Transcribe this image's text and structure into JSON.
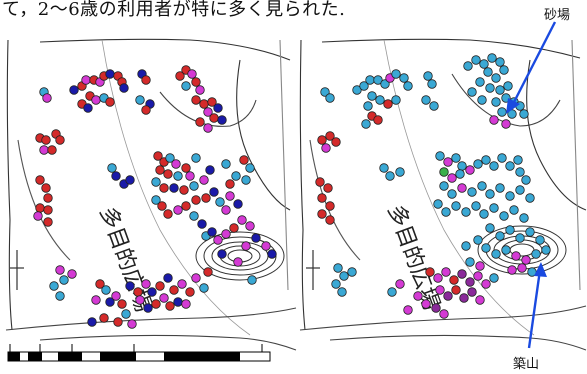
{
  "caption": "て，2〜6歳の利用者が特に多く見られた.",
  "labels": {
    "sand_pit": "砂場",
    "mound": "築山",
    "plaza": "多目的広場"
  },
  "colors": {
    "red": "#d42a2a",
    "magenta": "#d43ad4",
    "navy": "#1a1aa8",
    "cyan": "#3aa8d4",
    "purple": "#8a2a9a",
    "green": "#3ab04a",
    "arrow": "#1a4ae0"
  },
  "maps": [
    {
      "dots": [
        [
          44,
          92,
          "cyan"
        ],
        [
          47,
          98,
          "magenta"
        ],
        [
          74,
          90,
          "navy"
        ],
        [
          82,
          86,
          "red"
        ],
        [
          86,
          80,
          "magenta"
        ],
        [
          94,
          80,
          "red"
        ],
        [
          100,
          82,
          "magenta"
        ],
        [
          104,
          76,
          "red"
        ],
        [
          110,
          74,
          "navy"
        ],
        [
          118,
          76,
          "red"
        ],
        [
          122,
          82,
          "red"
        ],
        [
          124,
          88,
          "navy"
        ],
        [
          90,
          96,
          "red"
        ],
        [
          96,
          100,
          "magenta"
        ],
        [
          104,
          98,
          "cyan"
        ],
        [
          110,
          102,
          "red"
        ],
        [
          82,
          104,
          "red"
        ],
        [
          88,
          108,
          "navy"
        ],
        [
          142,
          74,
          "navy"
        ],
        [
          146,
          80,
          "red"
        ],
        [
          140,
          100,
          "cyan"
        ],
        [
          150,
          104,
          "navy"
        ],
        [
          146,
          110,
          "red"
        ],
        [
          180,
          76,
          "red"
        ],
        [
          186,
          70,
          "red"
        ],
        [
          192,
          74,
          "magenta"
        ],
        [
          196,
          82,
          "red"
        ],
        [
          186,
          86,
          "cyan"
        ],
        [
          200,
          90,
          "magenta"
        ],
        [
          196,
          100,
          "red"
        ],
        [
          204,
          104,
          "red"
        ],
        [
          212,
          102,
          "red"
        ],
        [
          218,
          108,
          "navy"
        ],
        [
          208,
          112,
          "magenta"
        ],
        [
          214,
          118,
          "red"
        ],
        [
          222,
          120,
          "navy"
        ],
        [
          200,
          122,
          "red"
        ],
        [
          208,
          128,
          "magenta"
        ],
        [
          40,
          138,
          "red"
        ],
        [
          46,
          140,
          "red"
        ],
        [
          56,
          134,
          "red"
        ],
        [
          60,
          140,
          "red"
        ],
        [
          44,
          150,
          "magenta"
        ],
        [
          52,
          150,
          "red"
        ],
        [
          40,
          180,
          "red"
        ],
        [
          46,
          188,
          "red"
        ],
        [
          48,
          198,
          "red"
        ],
        [
          40,
          208,
          "red"
        ],
        [
          48,
          210,
          "red"
        ],
        [
          38,
          216,
          "magenta"
        ],
        [
          48,
          222,
          "red"
        ],
        [
          112,
          168,
          "cyan"
        ],
        [
          116,
          176,
          "navy"
        ],
        [
          124,
          184,
          "navy"
        ],
        [
          130,
          180,
          "navy"
        ],
        [
          158,
          156,
          "red"
        ],
        [
          164,
          162,
          "red"
        ],
        [
          170,
          158,
          "cyan"
        ],
        [
          176,
          164,
          "magenta"
        ],
        [
          160,
          170,
          "red"
        ],
        [
          168,
          174,
          "red"
        ],
        [
          178,
          176,
          "cyan"
        ],
        [
          186,
          168,
          "red"
        ],
        [
          190,
          176,
          "magenta"
        ],
        [
          156,
          182,
          "cyan"
        ],
        [
          164,
          188,
          "red"
        ],
        [
          174,
          188,
          "navy"
        ],
        [
          184,
          190,
          "red"
        ],
        [
          194,
          186,
          "cyan"
        ],
        [
          204,
          180,
          "magenta"
        ],
        [
          210,
          170,
          "navy"
        ],
        [
          196,
          158,
          "cyan"
        ],
        [
          156,
          200,
          "cyan"
        ],
        [
          162,
          206,
          "red"
        ],
        [
          168,
          214,
          "red"
        ],
        [
          178,
          210,
          "magenta"
        ],
        [
          186,
          206,
          "red"
        ],
        [
          196,
          200,
          "red"
        ],
        [
          206,
          198,
          "red"
        ],
        [
          214,
          192,
          "navy"
        ],
        [
          220,
          202,
          "cyan"
        ],
        [
          226,
          210,
          "magenta"
        ],
        [
          230,
          196,
          "magenta"
        ],
        [
          238,
          204,
          "navy"
        ],
        [
          230,
          184,
          "red"
        ],
        [
          236,
          176,
          "cyan"
        ],
        [
          246,
          180,
          "cyan"
        ],
        [
          226,
          164,
          "cyan"
        ],
        [
          244,
          160,
          "red"
        ],
        [
          250,
          168,
          "cyan"
        ],
        [
          194,
          216,
          "cyan"
        ],
        [
          202,
          224,
          "navy"
        ],
        [
          206,
          236,
          "cyan"
        ],
        [
          212,
          232,
          "navy"
        ],
        [
          218,
          240,
          "magenta"
        ],
        [
          226,
          234,
          "magenta"
        ],
        [
          234,
          228,
          "red"
        ],
        [
          242,
          220,
          "magenta"
        ],
        [
          250,
          226,
          "magenta"
        ],
        [
          256,
          238,
          "navy"
        ],
        [
          246,
          246,
          "magenta"
        ],
        [
          266,
          246,
          "magenta"
        ],
        [
          272,
          254,
          "navy"
        ],
        [
          238,
          262,
          "magenta"
        ],
        [
          222,
          254,
          "navy"
        ],
        [
          60,
          270,
          "magenta"
        ],
        [
          64,
          280,
          "cyan"
        ],
        [
          72,
          274,
          "magenta"
        ],
        [
          54,
          286,
          "cyan"
        ],
        [
          60,
          296,
          "cyan"
        ],
        [
          100,
          284,
          "red"
        ],
        [
          106,
          290,
          "cyan"
        ],
        [
          96,
          300,
          "magenta"
        ],
        [
          110,
          302,
          "navy"
        ],
        [
          116,
          296,
          "magenta"
        ],
        [
          122,
          304,
          "red"
        ],
        [
          130,
          286,
          "navy"
        ],
        [
          138,
          292,
          "red"
        ],
        [
          146,
          284,
          "magenta"
        ],
        [
          152,
          292,
          "navy"
        ],
        [
          160,
          286,
          "red"
        ],
        [
          168,
          278,
          "navy"
        ],
        [
          174,
          290,
          "red"
        ],
        [
          182,
          284,
          "magenta"
        ],
        [
          190,
          292,
          "red"
        ],
        [
          196,
          278,
          "magenta"
        ],
        [
          204,
          288,
          "cyan"
        ],
        [
          208,
          272,
          "red"
        ],
        [
          140,
          300,
          "magenta"
        ],
        [
          148,
          308,
          "navy"
        ],
        [
          156,
          304,
          "red"
        ],
        [
          164,
          298,
          "magenta"
        ],
        [
          170,
          306,
          "red"
        ],
        [
          178,
          302,
          "navy"
        ],
        [
          186,
          304,
          "magenta"
        ],
        [
          126,
          314,
          "cyan"
        ],
        [
          118,
          322,
          "red"
        ],
        [
          132,
          324,
          "magenta"
        ],
        [
          92,
          322,
          "navy"
        ],
        [
          104,
          318,
          "red"
        ],
        [
          252,
          280,
          "cyan"
        ]
      ]
    },
    {
      "dots": [
        [
          325,
          92,
          "cyan"
        ],
        [
          330,
          98,
          "cyan"
        ],
        [
          357,
          90,
          "cyan"
        ],
        [
          364,
          86,
          "cyan"
        ],
        [
          370,
          80,
          "cyan"
        ],
        [
          378,
          80,
          "cyan"
        ],
        [
          385,
          84,
          "cyan"
        ],
        [
          390,
          78,
          "magenta"
        ],
        [
          396,
          74,
          "cyan"
        ],
        [
          404,
          78,
          "cyan"
        ],
        [
          408,
          86,
          "cyan"
        ],
        [
          372,
          96,
          "cyan"
        ],
        [
          380,
          100,
          "cyan"
        ],
        [
          388,
          104,
          "red"
        ],
        [
          396,
          100,
          "cyan"
        ],
        [
          368,
          106,
          "cyan"
        ],
        [
          428,
          76,
          "cyan"
        ],
        [
          432,
          84,
          "cyan"
        ],
        [
          426,
          100,
          "cyan"
        ],
        [
          434,
          106,
          "cyan"
        ],
        [
          468,
          66,
          "cyan"
        ],
        [
          476,
          60,
          "cyan"
        ],
        [
          484,
          64,
          "cyan"
        ],
        [
          492,
          58,
          "cyan"
        ],
        [
          500,
          62,
          "cyan"
        ],
        [
          488,
          72,
          "cyan"
        ],
        [
          496,
          78,
          "cyan"
        ],
        [
          504,
          70,
          "cyan"
        ],
        [
          480,
          82,
          "cyan"
        ],
        [
          490,
          88,
          "cyan"
        ],
        [
          500,
          90,
          "cyan"
        ],
        [
          508,
          86,
          "cyan"
        ],
        [
          472,
          92,
          "cyan"
        ],
        [
          482,
          100,
          "cyan"
        ],
        [
          496,
          102,
          "cyan"
        ],
        [
          506,
          98,
          "cyan"
        ],
        [
          514,
          102,
          "cyan"
        ],
        [
          502,
          112,
          "cyan"
        ],
        [
          512,
          114,
          "cyan"
        ],
        [
          520,
          106,
          "cyan"
        ],
        [
          524,
          114,
          "cyan"
        ],
        [
          494,
          120,
          "magenta"
        ],
        [
          506,
          124,
          "magenta"
        ],
        [
          372,
          116,
          "red"
        ],
        [
          378,
          120,
          "red"
        ],
        [
          366,
          124,
          "cyan"
        ],
        [
          322,
          140,
          "red"
        ],
        [
          330,
          136,
          "red"
        ],
        [
          336,
          142,
          "red"
        ],
        [
          326,
          148,
          "magenta"
        ],
        [
          320,
          182,
          "red"
        ],
        [
          328,
          188,
          "red"
        ],
        [
          322,
          198,
          "red"
        ],
        [
          330,
          206,
          "red"
        ],
        [
          322,
          214,
          "red"
        ],
        [
          330,
          220,
          "red"
        ],
        [
          384,
          168,
          "cyan"
        ],
        [
          390,
          176,
          "cyan"
        ],
        [
          400,
          172,
          "cyan"
        ],
        [
          440,
          156,
          "cyan"
        ],
        [
          448,
          162,
          "magenta"
        ],
        [
          456,
          158,
          "cyan"
        ],
        [
          462,
          166,
          "cyan"
        ],
        [
          444,
          172,
          "green"
        ],
        [
          452,
          178,
          "magenta"
        ],
        [
          460,
          174,
          "cyan"
        ],
        [
          470,
          170,
          "magenta"
        ],
        [
          478,
          164,
          "cyan"
        ],
        [
          486,
          160,
          "cyan"
        ],
        [
          494,
          166,
          "cyan"
        ],
        [
          502,
          158,
          "cyan"
        ],
        [
          510,
          166,
          "cyan"
        ],
        [
          518,
          160,
          "cyan"
        ],
        [
          520,
          172,
          "cyan"
        ],
        [
          526,
          180,
          "cyan"
        ],
        [
          444,
          186,
          "cyan"
        ],
        [
          452,
          194,
          "cyan"
        ],
        [
          462,
          188,
          "magenta"
        ],
        [
          472,
          192,
          "cyan"
        ],
        [
          482,
          186,
          "cyan"
        ],
        [
          490,
          194,
          "cyan"
        ],
        [
          500,
          188,
          "cyan"
        ],
        [
          510,
          196,
          "cyan"
        ],
        [
          520,
          190,
          "cyan"
        ],
        [
          530,
          198,
          "cyan"
        ],
        [
          438,
          204,
          "cyan"
        ],
        [
          446,
          212,
          "cyan"
        ],
        [
          456,
          206,
          "cyan"
        ],
        [
          466,
          212,
          "cyan"
        ],
        [
          476,
          206,
          "cyan"
        ],
        [
          484,
          214,
          "cyan"
        ],
        [
          494,
          208,
          "cyan"
        ],
        [
          504,
          216,
          "cyan"
        ],
        [
          514,
          210,
          "cyan"
        ],
        [
          524,
          218,
          "cyan"
        ],
        [
          490,
          228,
          "cyan"
        ],
        [
          500,
          236,
          "cyan"
        ],
        [
          510,
          230,
          "cyan"
        ],
        [
          520,
          238,
          "cyan"
        ],
        [
          530,
          232,
          "cyan"
        ],
        [
          540,
          240,
          "cyan"
        ],
        [
          478,
          240,
          "cyan"
        ],
        [
          486,
          248,
          "cyan"
        ],
        [
          496,
          254,
          "cyan"
        ],
        [
          506,
          250,
          "cyan"
        ],
        [
          516,
          256,
          "magenta"
        ],
        [
          526,
          260,
          "magenta"
        ],
        [
          536,
          254,
          "cyan"
        ],
        [
          546,
          250,
          "cyan"
        ],
        [
          466,
          246,
          "cyan"
        ],
        [
          470,
          262,
          "cyan"
        ],
        [
          480,
          266,
          "magenta"
        ],
        [
          338,
          268,
          "cyan"
        ],
        [
          344,
          276,
          "cyan"
        ],
        [
          352,
          272,
          "cyan"
        ],
        [
          336,
          284,
          "cyan"
        ],
        [
          342,
          292,
          "cyan"
        ],
        [
          430,
          272,
          "red"
        ],
        [
          438,
          278,
          "magenta"
        ],
        [
          446,
          272,
          "magenta"
        ],
        [
          454,
          280,
          "red"
        ],
        [
          462,
          274,
          "purple"
        ],
        [
          470,
          282,
          "purple"
        ],
        [
          478,
          276,
          "magenta"
        ],
        [
          486,
          284,
          "magenta"
        ],
        [
          494,
          278,
          "cyan"
        ],
        [
          440,
          290,
          "magenta"
        ],
        [
          448,
          296,
          "purple"
        ],
        [
          456,
          290,
          "red"
        ],
        [
          464,
          298,
          "purple"
        ],
        [
          472,
          292,
          "purple"
        ],
        [
          480,
          300,
          "magenta"
        ],
        [
          418,
          296,
          "magenta"
        ],
        [
          426,
          304,
          "magenta"
        ],
        [
          436,
          308,
          "purple"
        ],
        [
          444,
          314,
          "magenta"
        ],
        [
          408,
          310,
          "magenta"
        ],
        [
          400,
          284,
          "magenta"
        ],
        [
          392,
          292,
          "cyan"
        ],
        [
          512,
          270,
          "magenta"
        ],
        [
          522,
          268,
          "magenta"
        ],
        [
          532,
          272,
          "cyan"
        ]
      ]
    }
  ]
}
